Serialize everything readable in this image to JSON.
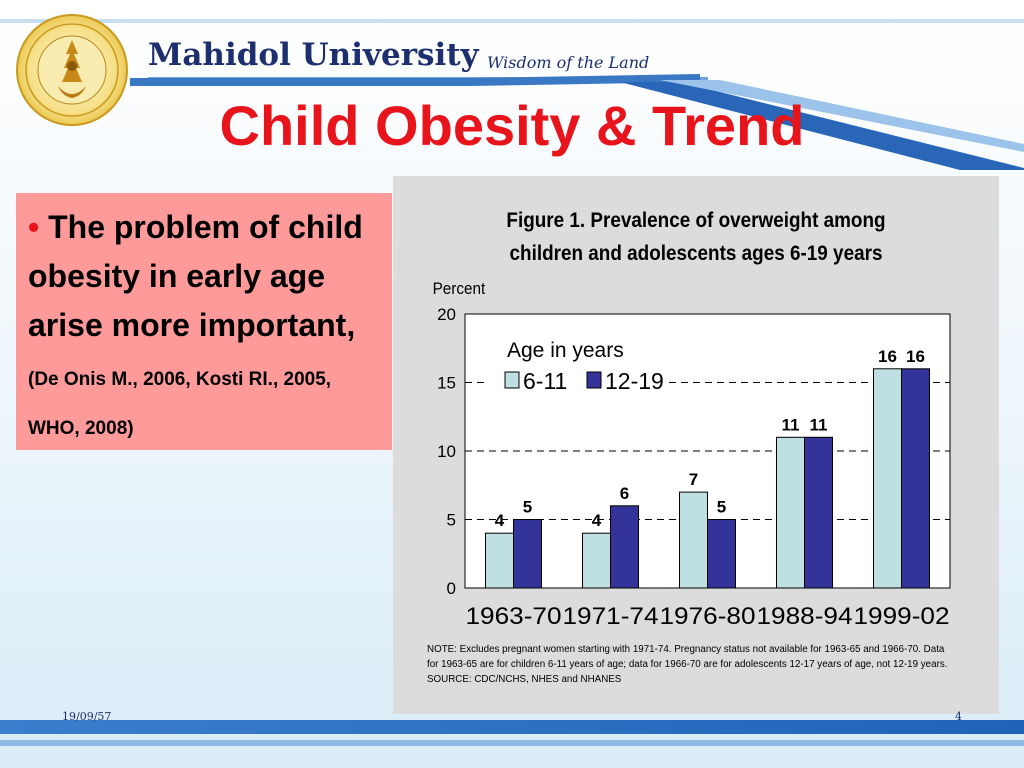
{
  "header": {
    "university": "Mahidol University",
    "motto": "Wisdom of the Land",
    "logo_icon": "mahidol-university-seal"
  },
  "slide": {
    "title": "Child Obesity & Trend",
    "bullet_marker": "•",
    "bullet_text": "The problem of child obesity in early age arise more important,",
    "bullet_citation": "(De Onis M., 2006, Kosti RI., 2005, WHO, 2008)"
  },
  "figure": {
    "title_line1": "Figure 1. Prevalence of overweight among",
    "title_line2": "children and adolescents ages 6-19 years",
    "note_line1": "NOTE:  Excludes pregnant women starting with 1971-74.  Pregnancy status not available for 1963-65 and 1966-70.  Data",
    "note_line2": "for 1963-65 are for children 6-11 years of age; data for 1966-70 are for adolescents 12-17 years of age, not 12-19 years.",
    "note_line3": "SOURCE: CDC/NCHS, NHES and NHANES"
  },
  "chart_data": {
    "type": "bar",
    "ylabel": "Percent",
    "ylim": [
      0,
      20
    ],
    "yticks": [
      0,
      5,
      10,
      15,
      20
    ],
    "grid": "dashed horizontal",
    "legend_title": "Age in years",
    "legend_position": "top-left",
    "categories": [
      "1963-70",
      "1971-74",
      "1976-80",
      "1988-94",
      "1999-02"
    ],
    "series": [
      {
        "name": "6-11",
        "values": [
          4,
          4,
          7,
          11,
          16
        ],
        "color": "#bfe0e2"
      },
      {
        "name": "12-19",
        "values": [
          5,
          6,
          5,
          11,
          16
        ],
        "color": "#333399"
      }
    ]
  },
  "footer": {
    "date": "19/09/57",
    "page": "4"
  },
  "colors": {
    "title_red": "#e8141c",
    "brand_navy": "#1d2f6e",
    "stripe_blue": "#1f63b8",
    "textbox_pink": "#ff9a9a"
  }
}
